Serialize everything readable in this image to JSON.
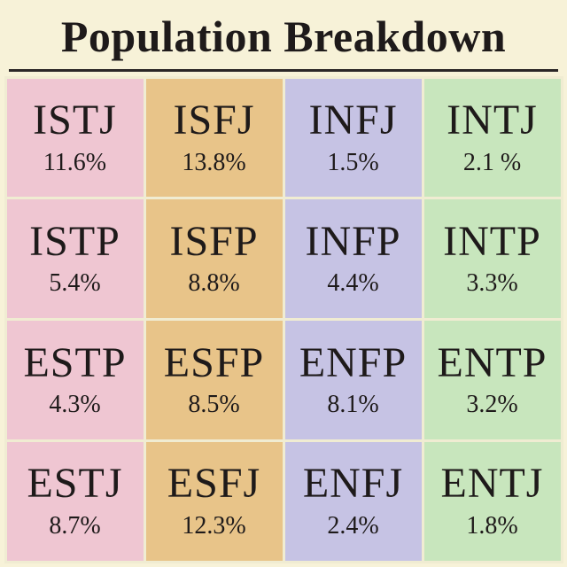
{
  "title": "Population Breakdown",
  "layout": {
    "rows": 4,
    "cols": 4,
    "type_fontsize": 48,
    "pct_fontsize": 28,
    "title_fontsize": 50
  },
  "colors": {
    "page_background": "#f7f2d8",
    "grid_border": "#f0ecd2",
    "header_rule": "#2a2626",
    "text": "#1e1a1a",
    "columns": [
      "#efc6d2",
      "#e8c489",
      "#c6c3e4",
      "#c8e6bd"
    ]
  },
  "cells": [
    {
      "code": "ISTJ",
      "pct": "11.6%"
    },
    {
      "code": "ISFJ",
      "pct": "13.8%"
    },
    {
      "code": "INFJ",
      "pct": "1.5%"
    },
    {
      "code": "INTJ",
      "pct": "2.1 %"
    },
    {
      "code": "ISTP",
      "pct": "5.4%"
    },
    {
      "code": "ISFP",
      "pct": "8.8%"
    },
    {
      "code": "INFP",
      "pct": "4.4%"
    },
    {
      "code": "INTP",
      "pct": "3.3%"
    },
    {
      "code": "ESTP",
      "pct": "4.3%"
    },
    {
      "code": "ESFP",
      "pct": "8.5%"
    },
    {
      "code": "ENFP",
      "pct": "8.1%"
    },
    {
      "code": "ENTP",
      "pct": "3.2%"
    },
    {
      "code": "ESTJ",
      "pct": "8.7%"
    },
    {
      "code": "ESFJ",
      "pct": "12.3%"
    },
    {
      "code": "ENFJ",
      "pct": "2.4%"
    },
    {
      "code": "ENTJ",
      "pct": "1.8%"
    }
  ]
}
